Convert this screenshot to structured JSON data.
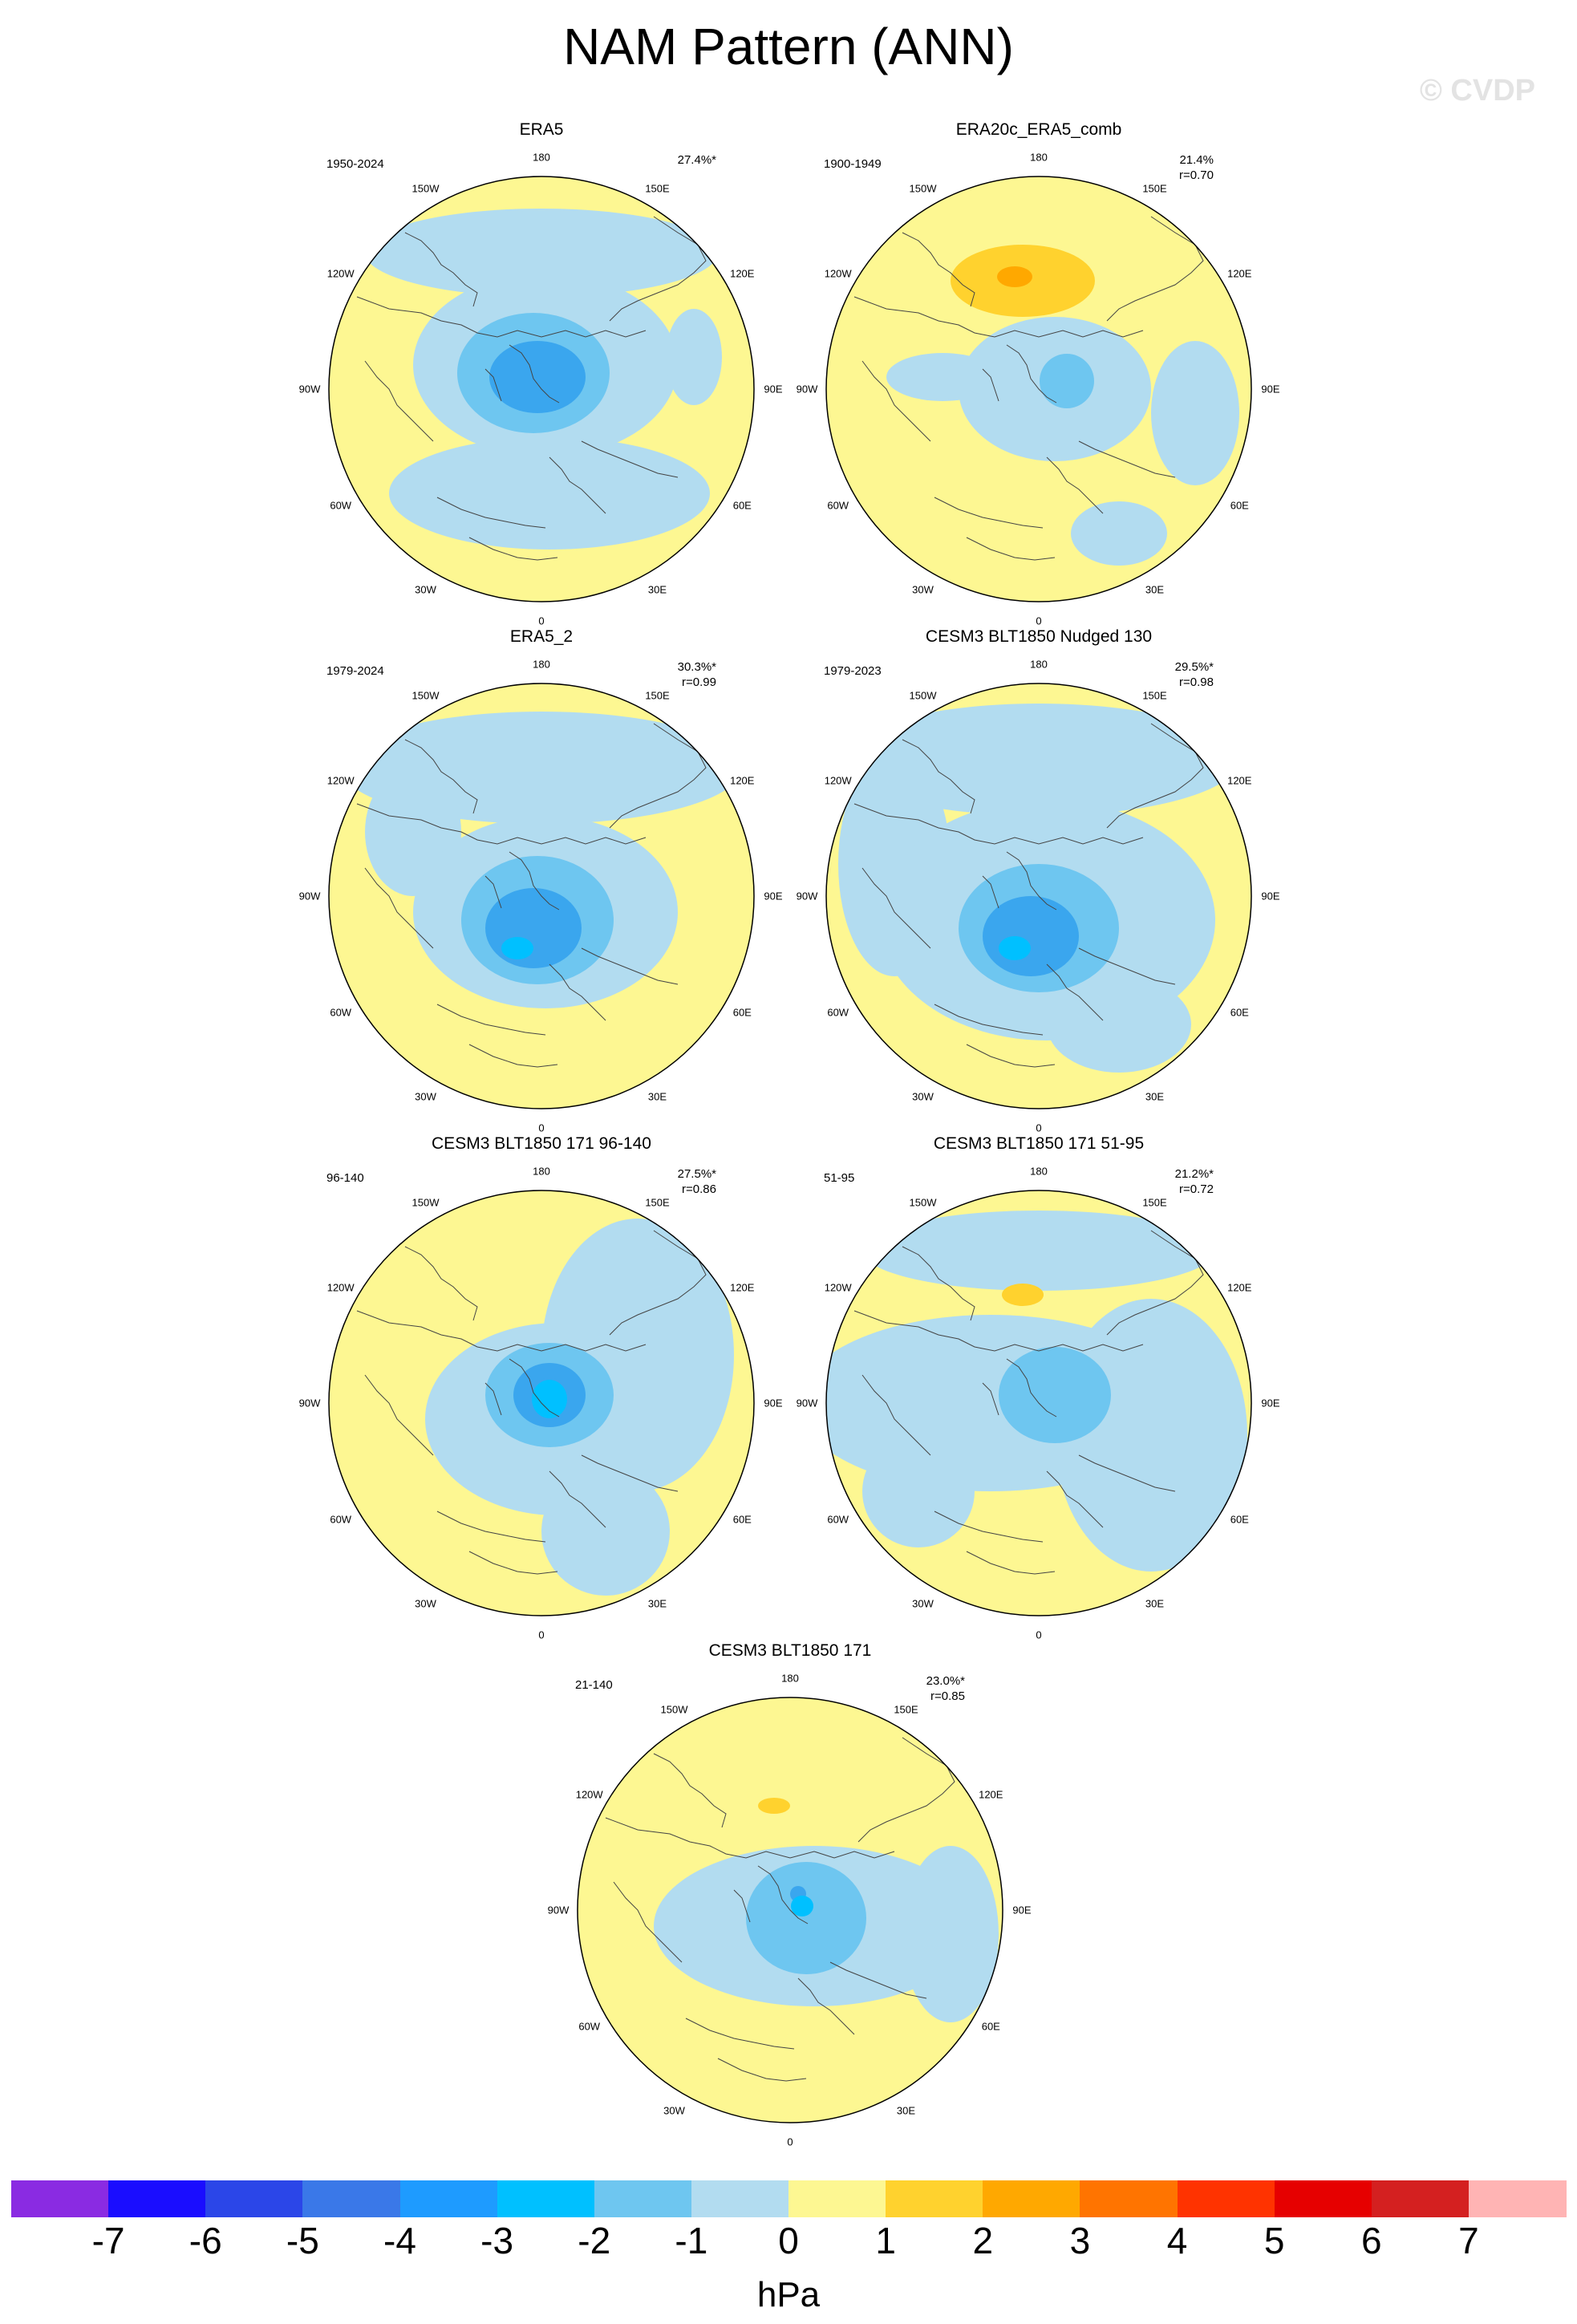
{
  "title": "NAM Pattern (ANN)",
  "watermark": "© CVDP",
  "longitude_labels": [
    "180",
    "150E",
    "120E",
    "90E",
    "60E",
    "30E",
    "0",
    "30W",
    "60W",
    "90W",
    "120W",
    "150W"
  ],
  "panels": [
    {
      "title": "ERA5",
      "period": "1950-2024",
      "variance": "27.4%*",
      "correlation": "",
      "max_anomaly": -4
    },
    {
      "title": "ERA20c_ERA5_comb",
      "period": "1900-1949",
      "variance": "21.4%",
      "correlation": "r=0.70",
      "max_anomaly": -3
    },
    {
      "title": "ERA5_2",
      "period": "1979-2024",
      "variance": "30.3%*",
      "correlation": "r=0.99",
      "max_anomaly": -4
    },
    {
      "title": "CESM3 BLT1850 Nudged 130",
      "period": "1979-2023",
      "variance": "29.5%*",
      "correlation": "r=0.98",
      "max_anomaly": -4
    },
    {
      "title": "CESM3 BLT1850 171 96-140",
      "period": "96-140",
      "variance": "27.5%*",
      "correlation": "r=0.86",
      "max_anomaly": -3
    },
    {
      "title": "CESM3 BLT1850 171 51-95",
      "period": "51-95",
      "variance": "21.2%*",
      "correlation": "r=0.72",
      "max_anomaly": -2
    },
    {
      "title": "CESM3 BLT1850 171",
      "period": "21-140",
      "variance": "23.0%*",
      "correlation": "r=0.85",
      "max_anomaly": -3
    }
  ],
  "colorbar": {
    "units": "hPa",
    "tick_labels": [
      "-7",
      "-6",
      "-5",
      "-4",
      "-3",
      "-2",
      "-1",
      "0",
      "1",
      "2",
      "3",
      "4",
      "5",
      "6",
      "7"
    ],
    "colors": [
      "#8a2be2",
      "#1a0dff",
      "#2b46e8",
      "#3a78e8",
      "#1e9bff",
      "#00c0ff",
      "#6ec6f0",
      "#b2dcf0",
      "#fdf792",
      "#ffd22e",
      "#ffa800",
      "#ff7400",
      "#ff3300",
      "#e60000",
      "#d42020",
      "#ffb4b4"
    ]
  },
  "colors": {
    "positive_1": "#fdf792",
    "positive_2": "#ffd22e",
    "positive_3": "#ffa800",
    "negative_1": "#b2dcf0",
    "negative_2": "#6ec6f0",
    "negative_3": "#3aa6ee",
    "negative_4": "#00c0ff"
  }
}
